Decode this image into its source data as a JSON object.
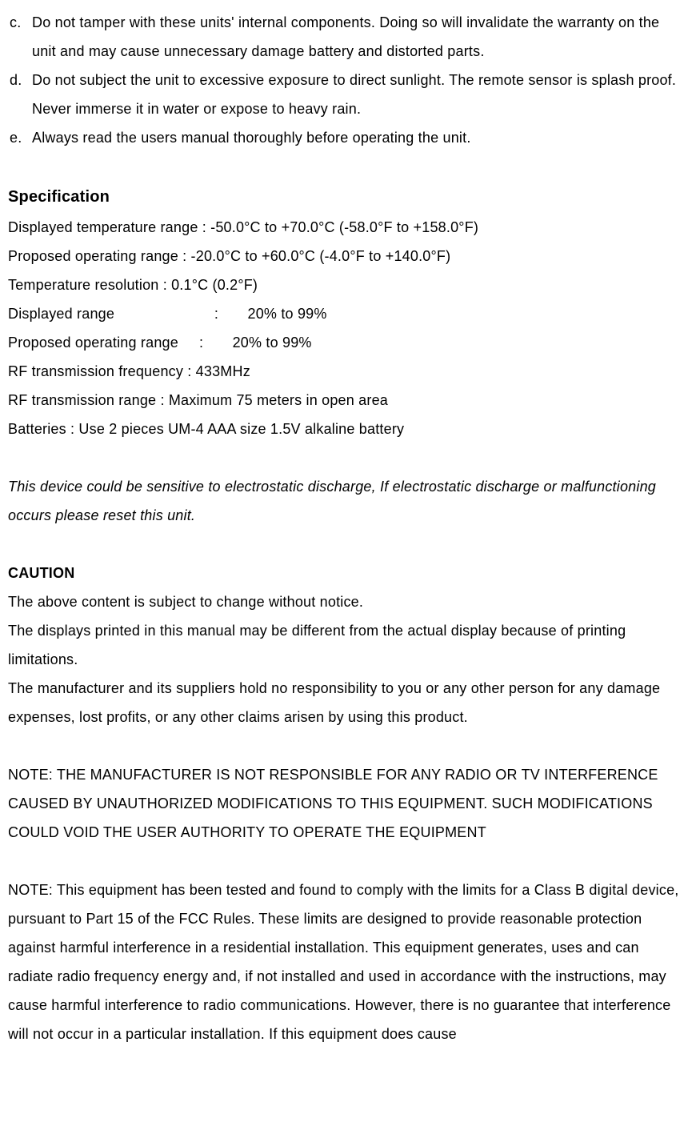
{
  "list": {
    "c": {
      "marker": "c.",
      "text": "Do not tamper with these units' internal components. Doing so will invalidate the warranty on the unit and may cause unnecessary damage battery and distorted parts."
    },
    "d": {
      "marker": "d.",
      "text": "Do not subject the unit to excessive exposure to direct sunlight. The remote sensor is splash proof. Never immerse it in water or expose to heavy rain."
    },
    "e": {
      "marker": "e.",
      "text": "Always read the users manual thoroughly before operating the unit."
    }
  },
  "spec": {
    "heading": "Specification",
    "lines": {
      "temp_range": "Displayed temperature range : -50.0°C to +70.0°C (-58.0°F to +158.0°F)",
      "op_range": "Proposed operating range : -20.0°C to +60.0°C (-4.0°F to +140.0°F)",
      "resolution": "Temperature resolution : 0.1°C (0.2°F)",
      "disp_range": "Displayed range                        :       20% to 99%",
      "prop_range2": "Proposed operating range     :       20% to 99%",
      "rf_freq": "RF transmission frequency : 433MHz",
      "rf_range": "RF transmission range : Maximum 75 meters in open area",
      "batteries": "Batteries : Use 2 pieces UM-4 AAA size 1.5V alkaline battery"
    }
  },
  "esd_note": "This device could be sensitive to electrostatic discharge, If electrostatic discharge or malfunctioning occurs please reset this unit.",
  "caution": {
    "heading": "CAUTION",
    "p1": "The above content is subject to change without notice.",
    "p2": "The displays printed in this manual may be different from the actual display because of printing limitations.",
    "p3": "The manufacturer and its suppliers hold no responsibility to you or any other person for any damage expenses, lost profits, or any other claims arisen by using this product."
  },
  "note1": "NOTE: THE MANUFACTURER IS NOT RESPONSIBLE FOR ANY RADIO OR TV INTERFERENCE CAUSED BY UNAUTHORIZED MODIFICATIONS TO THIS EQUIPMENT. SUCH MODIFICATIONS COULD VOID THE USER AUTHORITY TO OPERATE THE EQUIPMENT",
  "note2": "NOTE: This equipment has been tested and found to comply with the limits for a Class B digital device, pursuant to Part 15 of the FCC Rules. These limits are designed to provide reasonable protection against harmful interference in a residential installation. This equipment generates, uses and can radiate radio frequency energy and, if not installed and used in accordance with the instructions, may cause harmful interference to radio communications. However, there is no guarantee that interference will not occur in a particular installation. If this equipment does cause"
}
